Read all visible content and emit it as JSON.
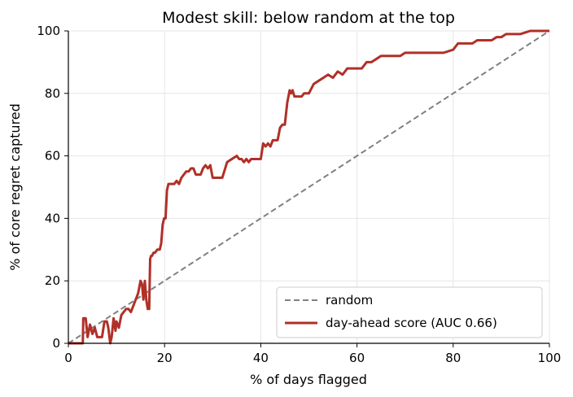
{
  "chart_data": {
    "type": "line",
    "title": "Modest skill: below random at the top",
    "xlabel": "% of days flagged",
    "ylabel": "% of core regret captured",
    "xlim": [
      0,
      100
    ],
    "ylim": [
      0,
      100
    ],
    "xticks": [
      "0",
      "20",
      "40",
      "60",
      "80",
      "100"
    ],
    "yticks": [
      "0",
      "20",
      "40",
      "60",
      "80",
      "100"
    ],
    "grid": true,
    "legend_position": "lower right",
    "series": [
      {
        "name": "random",
        "color": "#808080",
        "style": "dashed",
        "x": [
          0,
          100
        ],
        "y": [
          0,
          100
        ]
      },
      {
        "name": "day-ahead score (AUC 0.66)",
        "color": "#b03028",
        "style": "solid",
        "x": [
          0,
          3,
          3.1,
          3.6,
          4,
          4.5,
          5,
          5.5,
          6,
          6.5,
          7,
          7.5,
          8,
          8.3,
          8.7,
          9,
          9.4,
          9.8,
          10,
          10.5,
          11,
          11.5,
          12,
          12.5,
          13,
          13.5,
          14,
          14.5,
          15,
          15.3,
          15.6,
          15.9,
          16.2,
          16.5,
          16.8,
          17,
          17.2,
          17.4,
          17.7,
          18,
          18.5,
          19,
          19.3,
          19.6,
          19.9,
          20.2,
          20.5,
          20.8,
          21,
          21.3,
          21.6,
          22,
          22.5,
          23,
          23.5,
          24,
          24.5,
          25,
          25.5,
          26,
          26.5,
          27,
          27.5,
          28,
          28.5,
          29,
          29.5,
          30,
          30.5,
          31,
          31.5,
          32,
          33,
          34,
          35,
          35.5,
          36,
          36.5,
          37,
          37.5,
          38,
          38.5,
          39,
          39.5,
          40,
          40.5,
          41,
          41.5,
          42,
          42.5,
          43,
          43.5,
          44,
          44.5,
          45,
          45.5,
          46,
          46.3,
          46.6,
          47,
          47.5,
          48,
          48.5,
          49,
          49.5,
          50,
          51,
          52,
          53,
          54,
          55,
          56,
          57,
          58,
          59,
          60,
          61,
          62,
          63,
          64,
          65,
          66,
          67,
          68,
          69,
          70,
          72,
          74,
          76,
          78,
          80,
          81,
          82,
          83,
          84,
          85,
          86,
          87,
          88,
          89,
          90,
          91,
          92,
          93,
          94,
          95,
          96,
          97,
          98,
          99,
          100
        ],
        "y": [
          0,
          0,
          8,
          8,
          2,
          6,
          3,
          5,
          2,
          2,
          2,
          7,
          7,
          5,
          0,
          2,
          8,
          4,
          7,
          5,
          9,
          10,
          11,
          11,
          10,
          12,
          14,
          16,
          20,
          19,
          14,
          20,
          14,
          11,
          11,
          27,
          28,
          28,
          29,
          29,
          30,
          30,
          32,
          38,
          40,
          40,
          49,
          51,
          51,
          51,
          51,
          51,
          52,
          51,
          53,
          54,
          55,
          55,
          56,
          56,
          54,
          54,
          54,
          56,
          57,
          56,
          57,
          53,
          53,
          53,
          53,
          53,
          58,
          59,
          60,
          59,
          59,
          58,
          59,
          58,
          59,
          59,
          59,
          59,
          59,
          64,
          63,
          64,
          63,
          65,
          65,
          65,
          69,
          70,
          70,
          77,
          81,
          80,
          81,
          79,
          79,
          79,
          79,
          80,
          80,
          80,
          83,
          84,
          85,
          86,
          85,
          87,
          86,
          88,
          88,
          88,
          88,
          90,
          90,
          91,
          92,
          92,
          92,
          92,
          92,
          93,
          93,
          93,
          93,
          93,
          94,
          96,
          96,
          96,
          96,
          97,
          97,
          97,
          97,
          98,
          98,
          99,
          99,
          99,
          99,
          99.5,
          100,
          100,
          100,
          100,
          100
        ]
      }
    ]
  }
}
